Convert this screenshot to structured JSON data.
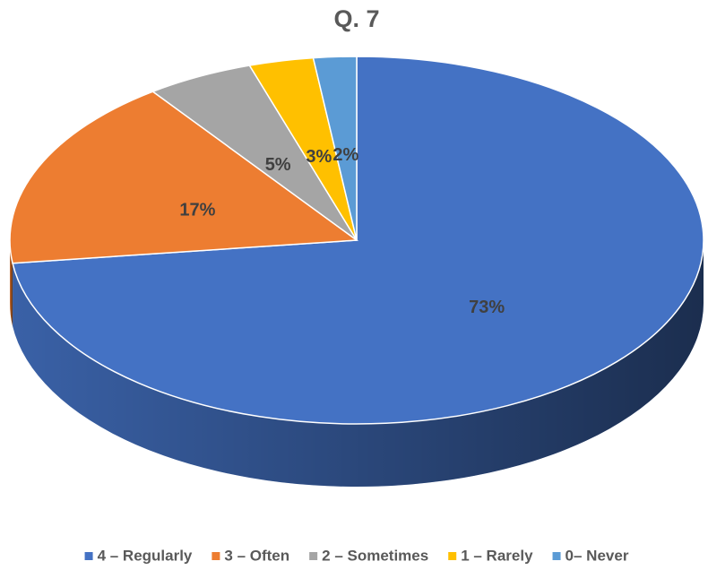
{
  "chart_data": {
    "type": "pie",
    "title": "Q. 7",
    "categories": [
      "4 – Regularly",
      "3 – Often",
      "2 – Sometimes",
      "1 – Rarely",
      "0– Never"
    ],
    "series": [
      {
        "name": "Q. 7",
        "values": [
          73,
          17,
          5,
          3,
          2
        ],
        "value_labels": [
          "73%",
          "17%",
          "5%",
          "3%",
          "2%"
        ],
        "colors": [
          "#4472c4",
          "#ed7d31",
          "#a5a5a5",
          "#ffc000",
          "#5b9bd5"
        ]
      }
    ],
    "legend": "bottom"
  }
}
